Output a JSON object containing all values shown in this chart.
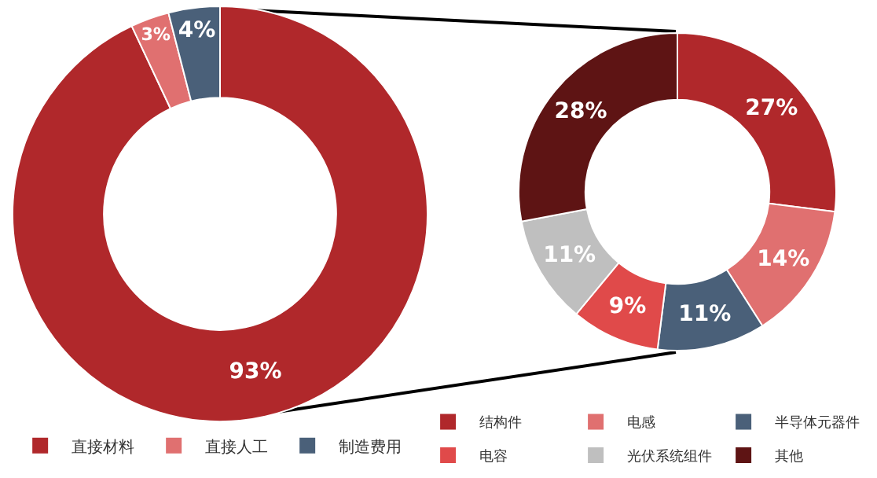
{
  "chart_data": [
    {
      "type": "donut",
      "categories": [
        "直接材料",
        "直接人工",
        "制造费用"
      ],
      "values": [
        93,
        3,
        4
      ],
      "colors": [
        "#b0282b",
        "#e07070",
        "#4a6079"
      ],
      "value_labels": [
        "93%",
        "3%",
        "4%"
      ],
      "legend": "bottom"
    },
    {
      "type": "donut",
      "categories": [
        "结构件",
        "电感",
        "半导体元器件",
        "电容",
        "光伏系统组件",
        "其他"
      ],
      "values": [
        27,
        14,
        11,
        9,
        11,
        28
      ],
      "colors": [
        "#b0282b",
        "#e07070",
        "#4a6079",
        "#e04a4a",
        "#bfbfbf",
        "#5e1414"
      ],
      "value_labels": [
        "27%",
        "14%",
        "11%",
        "9%",
        "11%",
        "28%"
      ],
      "legend": "bottom"
    }
  ]
}
